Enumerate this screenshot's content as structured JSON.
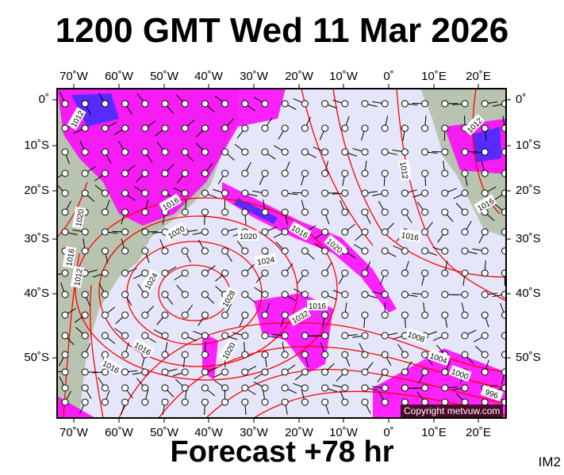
{
  "header": {
    "title": "1200 GMT Wed 11 Mar 2026"
  },
  "footer": {
    "forecast": "Forecast +78 hr",
    "code": "IM2",
    "copyright": "Copyright metvuw.com"
  },
  "map": {
    "lon_labels": [
      "70˚W",
      "60˚W",
      "50˚W",
      "40˚W",
      "30˚W",
      "20˚W",
      "10˚W",
      "0˚",
      "10˚E",
      "20˚E"
    ],
    "lat_labels": [
      "0˚",
      "10˚S",
      "20˚S",
      "30˚S",
      "40˚S",
      "50˚S"
    ],
    "colors": {
      "ocean": "#e6e6fa",
      "land": "#b8c4b0",
      "isobar": "#ff0000",
      "rain": "#ff00ff",
      "heavy_rain": "#3030ff"
    },
    "isobar_labels": [
      "1012",
      "1012",
      "1012",
      "1016",
      "1016",
      "1020",
      "1020",
      "1020",
      "1016",
      "1020",
      "1016",
      "1024",
      "1016",
      "1012",
      "1024",
      "1028",
      "1016",
      "1032",
      "1008",
      "1020",
      "1016",
      "1016",
      "1004",
      "1000",
      "996"
    ]
  }
}
